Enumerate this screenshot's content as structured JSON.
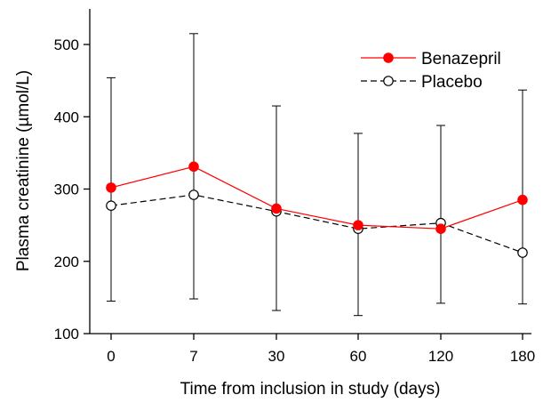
{
  "chart_data": {
    "type": "line",
    "title": "",
    "xlabel": "Time from inclusion in study (days)",
    "ylabel": "Plasma creatinine (µmol/L)",
    "categories": [
      "0",
      "7",
      "30",
      "60",
      "120",
      "180"
    ],
    "ylim": [
      100,
      550
    ],
    "yticks": [
      100,
      200,
      300,
      400,
      500
    ],
    "grid": false,
    "legend_position": "top-right",
    "series": [
      {
        "name": "Benazepril",
        "color": "#ff0000",
        "marker": "filled-circle",
        "line_style": "solid",
        "values": [
          302,
          331,
          273,
          250,
          245,
          285
        ]
      },
      {
        "name": "Placebo",
        "color": "#000000",
        "marker": "open-circle",
        "line_style": "dashed",
        "values": [
          277,
          292,
          269,
          245,
          253,
          212
        ]
      }
    ],
    "error_bars": {
      "upper": [
        454,
        515,
        415,
        377,
        388,
        437
      ],
      "lower": [
        145,
        148,
        132,
        125,
        142,
        141
      ]
    }
  }
}
